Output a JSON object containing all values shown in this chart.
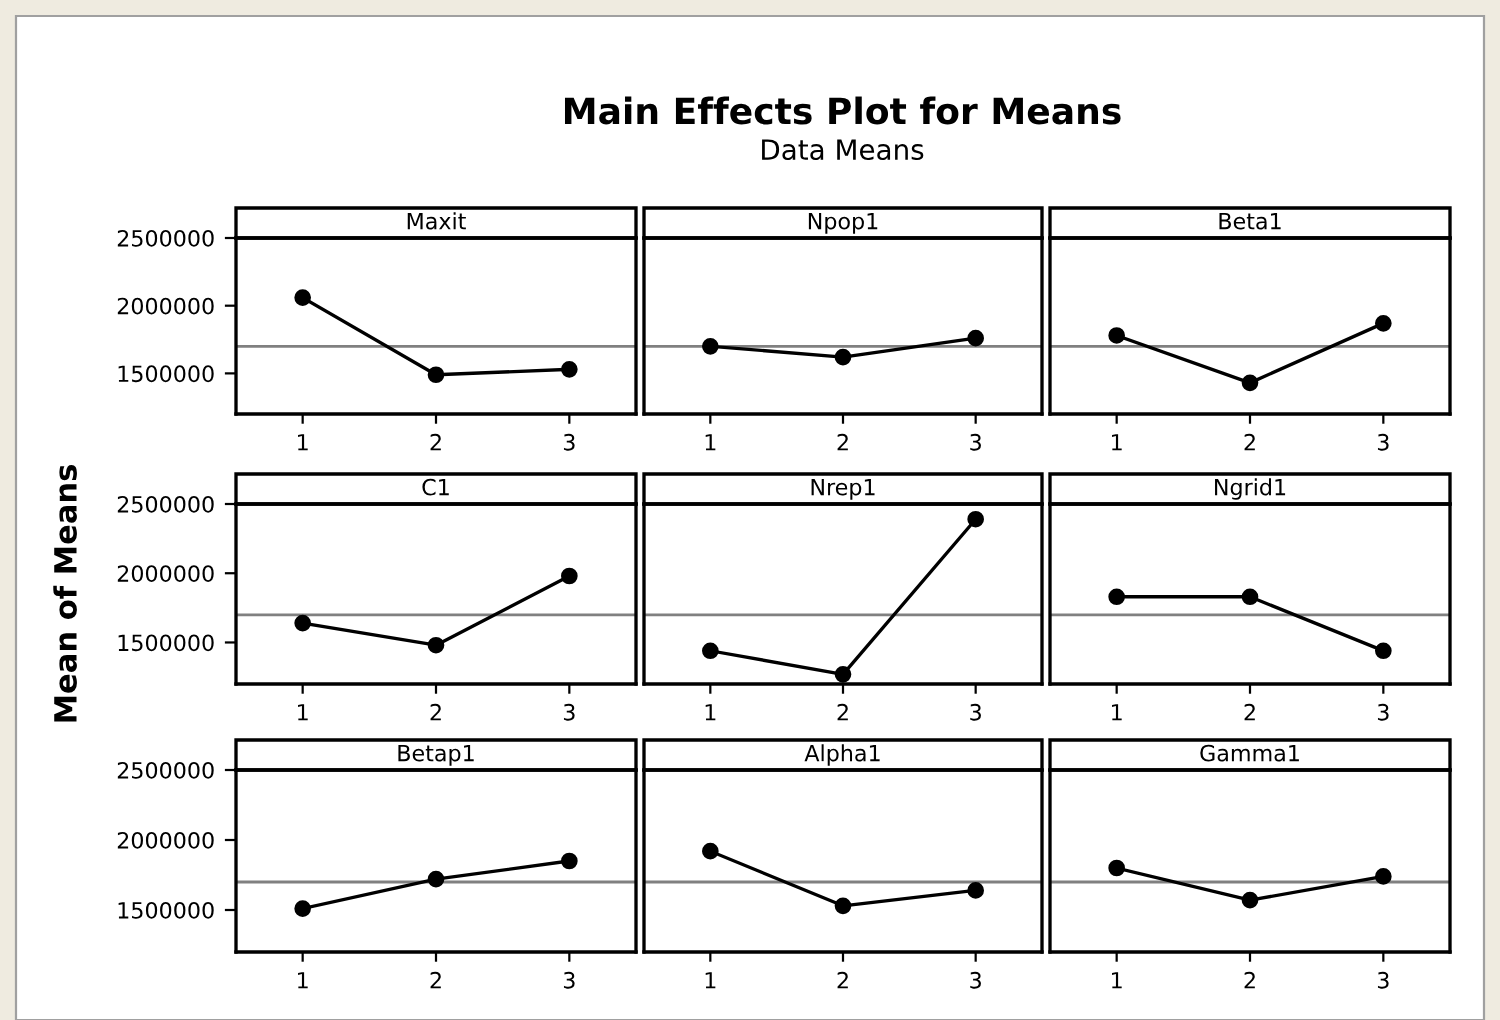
{
  "chart_data": [
    {
      "type": "line",
      "title": "Maxit",
      "annotations": [
        "Main Effects Plot for Means",
        "Data Means"
      ],
      "categories": [
        "1",
        "2",
        "3"
      ],
      "values": [
        2060000,
        1490000,
        1530000
      ],
      "color": "#000000",
      "marker": "circle",
      "ylim": [
        1200000,
        2500000
      ],
      "yticks": [
        1500000,
        2000000,
        2500000
      ],
      "ref_lines": [
        {
          "axis": "y",
          "value": 1700000,
          "color": "#808080"
        }
      ],
      "grid": false,
      "legend": false
    },
    {
      "type": "line",
      "title": "Npop1",
      "categories": [
        "1",
        "2",
        "3"
      ],
      "values": [
        1700000,
        1620000,
        1760000
      ],
      "color": "#000000",
      "marker": "circle",
      "ylim": [
        1200000,
        2500000
      ],
      "yticks": [
        1500000,
        2000000,
        2500000
      ],
      "ref_lines": [
        {
          "axis": "y",
          "value": 1700000,
          "color": "#808080"
        }
      ],
      "tick_labels": "x",
      "grid": false,
      "legend": false
    },
    {
      "type": "line",
      "title": "Beta1",
      "categories": [
        "1",
        "2",
        "3"
      ],
      "values": [
        1780000,
        1430000,
        1870000
      ],
      "color": "#000000",
      "marker": "circle",
      "ylim": [
        1200000,
        2500000
      ],
      "yticks": [
        1500000,
        2000000,
        2500000
      ],
      "ref_lines": [
        {
          "axis": "y",
          "value": 1700000,
          "color": "#808080"
        }
      ],
      "tick_labels": "x",
      "grid": false,
      "legend": false
    },
    {
      "type": "line",
      "title": "C1",
      "ylabel": "Mean of Means",
      "categories": [
        "1",
        "2",
        "3"
      ],
      "values": [
        1640000,
        1480000,
        1980000
      ],
      "color": "#000000",
      "marker": "circle",
      "ylim": [
        1200000,
        2500000
      ],
      "yticks": [
        1500000,
        2000000,
        2500000
      ],
      "ref_lines": [
        {
          "axis": "y",
          "value": 1700000,
          "color": "#808080"
        }
      ],
      "grid": false,
      "legend": false
    },
    {
      "type": "line",
      "title": "Nrep1",
      "categories": [
        "1",
        "2",
        "3"
      ],
      "values": [
        1440000,
        1270000,
        2390000
      ],
      "color": "#000000",
      "marker": "circle",
      "ylim": [
        1200000,
        2500000
      ],
      "yticks": [
        1500000,
        2000000,
        2500000
      ],
      "ref_lines": [
        {
          "axis": "y",
          "value": 1700000,
          "color": "#808080"
        }
      ],
      "tick_labels": "x",
      "grid": false,
      "legend": false
    },
    {
      "type": "line",
      "title": "Ngrid1",
      "categories": [
        "1",
        "2",
        "3"
      ],
      "values": [
        1830000,
        1830000,
        1440000
      ],
      "color": "#000000",
      "marker": "circle",
      "ylim": [
        1200000,
        2500000
      ],
      "yticks": [
        1500000,
        2000000,
        2500000
      ],
      "ref_lines": [
        {
          "axis": "y",
          "value": 1700000,
          "color": "#808080"
        }
      ],
      "tick_labels": "x",
      "grid": false,
      "legend": false
    },
    {
      "type": "line",
      "title": "Betap1",
      "categories": [
        "1",
        "2",
        "3"
      ],
      "values": [
        1510000,
        1720000,
        1850000
      ],
      "color": "#000000",
      "marker": "circle",
      "ylim": [
        1200000,
        2500000
      ],
      "yticks": [
        1500000,
        2000000,
        2500000
      ],
      "ref_lines": [
        {
          "axis": "y",
          "value": 1700000,
          "color": "#808080"
        }
      ],
      "grid": false,
      "legend": false
    },
    {
      "type": "line",
      "title": "Alpha1",
      "categories": [
        "1",
        "2",
        "3"
      ],
      "values": [
        1920000,
        1530000,
        1640000
      ],
      "color": "#000000",
      "marker": "circle",
      "ylim": [
        1200000,
        2500000
      ],
      "yticks": [
        1500000,
        2000000,
        2500000
      ],
      "ref_lines": [
        {
          "axis": "y",
          "value": 1700000,
          "color": "#808080"
        }
      ],
      "tick_labels": "x",
      "grid": false,
      "legend": false
    },
    {
      "type": "line",
      "title": "Gamma1",
      "categories": [
        "1",
        "2",
        "3"
      ],
      "values": [
        1800000,
        1570000,
        1740000
      ],
      "color": "#000000",
      "marker": "circle",
      "ylim": [
        1200000,
        2500000
      ],
      "yticks": [
        1500000,
        2000000,
        2500000
      ],
      "ref_lines": [
        {
          "axis": "y",
          "value": 1700000,
          "color": "#808080"
        }
      ],
      "tick_labels": "x",
      "grid": false,
      "legend": false
    }
  ]
}
